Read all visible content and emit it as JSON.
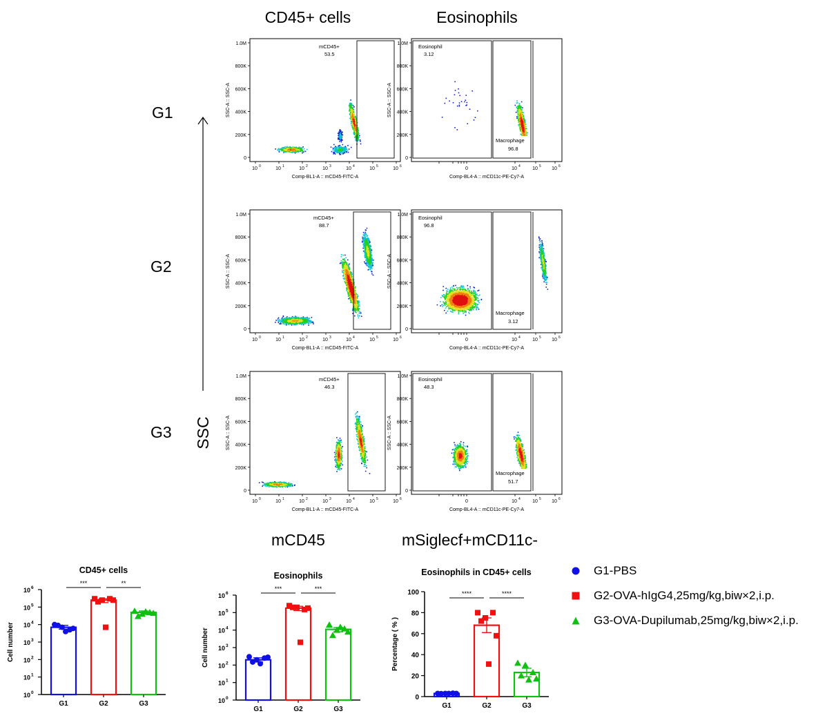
{
  "flow": {
    "column_headers": [
      "CD45+ cells",
      "Eosinophils"
    ],
    "row_labels": [
      "G1",
      "G2",
      "G3"
    ],
    "axis_label": "SSC",
    "bottom_headers": [
      "mCD45",
      "mSiglecf+mCD11c-"
    ],
    "ylabel": "SSC-A :: SSC-A",
    "yticks": [
      "0",
      "200K",
      "400K",
      "600K",
      "800K",
      "1.0M"
    ],
    "cd45": {
      "xlabel": "Comp-BL1-A :: mCD45-FITC-A",
      "xticks": [
        "0",
        "1",
        "2",
        "3",
        "4",
        "5",
        "6"
      ],
      "rows": [
        {
          "gate_name": "mCD45+",
          "gate_value": "53.5"
        },
        {
          "gate_name": "mCD45+",
          "gate_value": "88.7"
        },
        {
          "gate_name": "mCD45+",
          "gate_value": "46.3"
        }
      ]
    },
    "eos": {
      "xlabel": "Comp-BL4-A :: mCD11c-PE-Cy7-A",
      "xticks": [
        "0",
        "4",
        "5",
        "6"
      ],
      "rows": [
        {
          "eos_name": "Eosinophil",
          "eos_value": "3.12",
          "mac_name": "Macrophage",
          "mac_value": "96.8"
        },
        {
          "eos_name": "Eosinophil",
          "eos_value": "96.8",
          "mac_name": "Macrophage",
          "mac_value": "3.12"
        },
        {
          "eos_name": "Eosinophil",
          "eos_value": "48.3",
          "mac_name": "Macrophage",
          "mac_value": "51.7"
        }
      ]
    }
  },
  "legend": [
    {
      "label": "G1-PBS",
      "color": "#1010e6",
      "marker": "circle"
    },
    {
      "label": "G2-OVA-hIgG4,25mg/kg,biw×2,i.p.",
      "color": "#f01010",
      "marker": "square"
    },
    {
      "label": "G3-OVA-Dupilumab,25mg/kg,biw×2,i.p.",
      "color": "#10c010",
      "marker": "triangle"
    }
  ],
  "chart_data": [
    {
      "type": "bar",
      "title": "CD45+ cells",
      "ylabel": "Cell number",
      "yscale": "log",
      "ylim": [
        1,
        1000000
      ],
      "yticks": [
        "10",
        "10",
        "10",
        "10",
        "10",
        "10",
        "10"
      ],
      "ytick_exponents": [
        "0",
        "1",
        "2",
        "3",
        "4",
        "5",
        "6"
      ],
      "categories": [
        "G1",
        "G2",
        "G3"
      ],
      "values": [
        7000,
        250000,
        50000
      ],
      "error": [
        [
          5500,
          9000
        ],
        [
          180000,
          300000
        ],
        [
          38000,
          60000
        ]
      ],
      "points": [
        [
          10000,
          7000,
          5000,
          9000,
          4000,
          6000
        ],
        [
          300000,
          250000,
          300000,
          200000,
          7000,
          250000
        ],
        [
          60000,
          40000,
          50000,
          30000,
          55000,
          45000
        ]
      ],
      "significance": [
        {
          "from": 0,
          "to": 1,
          "label": "***"
        },
        {
          "from": 1,
          "to": 2,
          "label": "**"
        }
      ]
    },
    {
      "type": "bar",
      "title": "Eosinophils",
      "ylabel": "Cell number",
      "yscale": "log",
      "ylim": [
        1,
        1000000
      ],
      "yticks": [
        "10",
        "10",
        "10",
        "10",
        "10",
        "10",
        "10"
      ],
      "ytick_exponents": [
        "0",
        "1",
        "2",
        "3",
        "4",
        "5",
        "6"
      ],
      "categories": [
        "G1",
        "G2",
        "G3"
      ],
      "values": [
        200,
        180000,
        11000
      ],
      "error": [
        [
          150,
          260
        ],
        [
          130000,
          230000
        ],
        [
          8000,
          14000
        ]
      ],
      "points": [
        [
          300,
          200,
          250,
          150,
          120,
          280
        ],
        [
          250000,
          200000,
          150000,
          200000,
          2000,
          180000
        ],
        [
          20000,
          10000,
          12000,
          5000,
          15000,
          8000
        ]
      ],
      "significance": [
        {
          "from": 0,
          "to": 1,
          "label": "***"
        },
        {
          "from": 1,
          "to": 2,
          "label": "***"
        }
      ]
    },
    {
      "type": "bar",
      "title": "Eosinophils in CD45+ cells",
      "ylabel": "Percentage ( % )",
      "yscale": "linear",
      "ylim": [
        0,
        100
      ],
      "yticks": [
        "0",
        "20",
        "40",
        "60",
        "80",
        "100"
      ],
      "categories": [
        "G1",
        "G2",
        "G3"
      ],
      "values": [
        3,
        68,
        23
      ],
      "error": [
        [
          2.5,
          3.5
        ],
        [
          61,
          75
        ],
        [
          19,
          27
        ]
      ],
      "points": [
        [
          3,
          3,
          3.2,
          2.8,
          3,
          3
        ],
        [
          80,
          75,
          80,
          72,
          31,
          58
        ],
        [
          32,
          30,
          23,
          20,
          16,
          17
        ]
      ],
      "significance": [
        {
          "from": 0,
          "to": 1,
          "label": "****"
        },
        {
          "from": 1,
          "to": 2,
          "label": "****"
        }
      ]
    }
  ]
}
